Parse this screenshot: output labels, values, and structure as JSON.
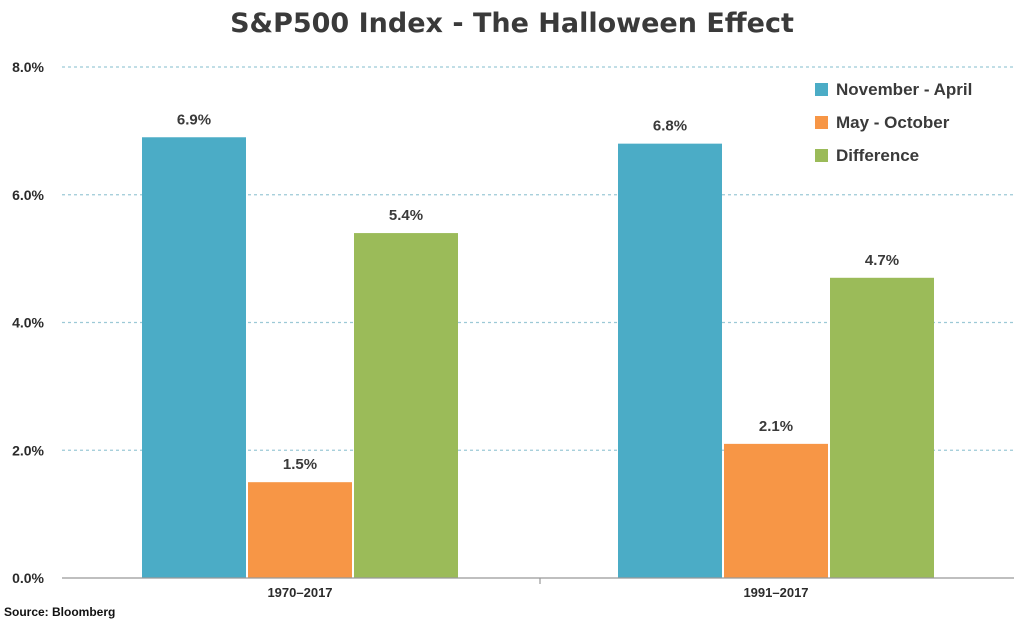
{
  "chart_data": {
    "type": "bar",
    "title": "S&P500 Index - The Halloween Effect",
    "categories": [
      "1970–2017",
      "1991–2017"
    ],
    "series": [
      {
        "name": "November - April",
        "color": "#4bacc6",
        "values": [
          6.9,
          6.8
        ],
        "labels": [
          "6.9%",
          "6.8%"
        ]
      },
      {
        "name": "May - October",
        "color": "#f79646",
        "values": [
          1.5,
          2.1
        ],
        "labels": [
          "1.5%",
          "2.1%"
        ]
      },
      {
        "name": "Difference",
        "color": "#9bbb59",
        "values": [
          5.4,
          4.7
        ],
        "labels": [
          "5.4%",
          "4.7%"
        ]
      }
    ],
    "y_ticks": [
      "0.0%",
      "2.0%",
      "4.0%",
      "6.0%",
      "8.0%"
    ],
    "y_tick_values": [
      0,
      2,
      4,
      6,
      8
    ],
    "ylim": [
      0,
      8
    ],
    "xlabel": "",
    "ylabel": "",
    "grid": true,
    "legend_position": "top-right"
  },
  "source": "Source: Bloomberg"
}
